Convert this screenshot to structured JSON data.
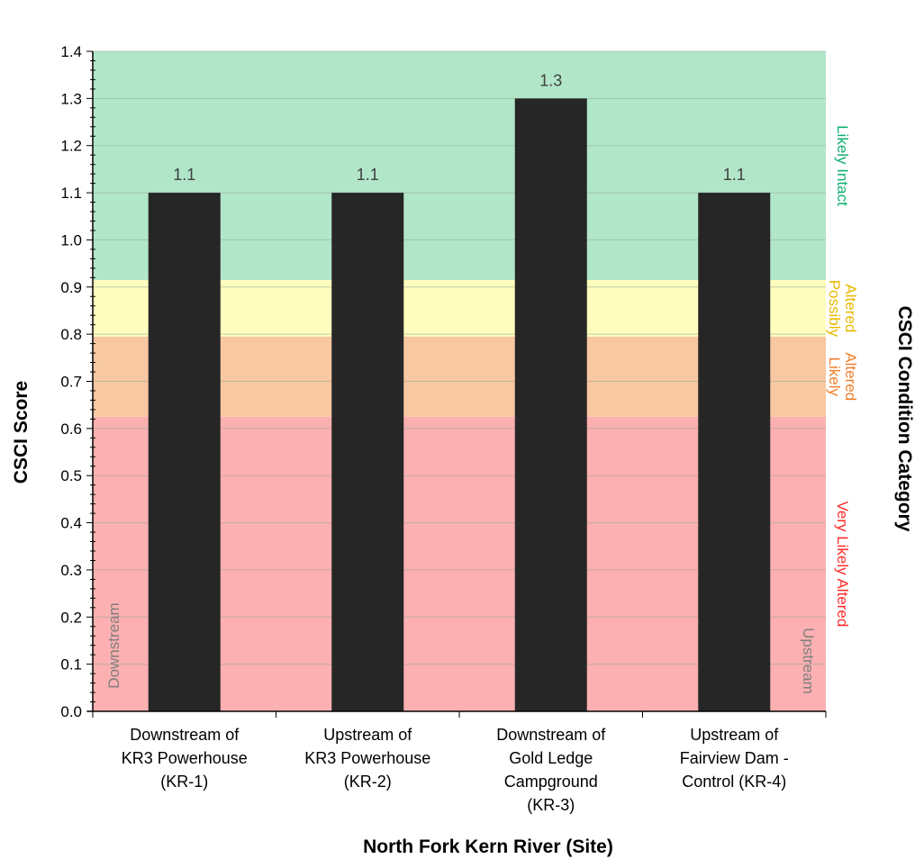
{
  "chart_data": {
    "type": "bar",
    "xlabel": "North Fork Kern River (Site)",
    "ylabel": "CSCI Score",
    "y2label": "CSCI Condition Category",
    "ylim": [
      0,
      1.4
    ],
    "ytick_step": 0.1,
    "categories": [
      [
        "Downstream of",
        "KR3 Powerhouse",
        "(KR-1)"
      ],
      [
        "Upstream of",
        "KR3 Powerhouse",
        "(KR-2)"
      ],
      [
        "Downstream of",
        "Gold Ledge",
        "Campground",
        "(KR-3)"
      ],
      [
        "Upstream of",
        "Fairview Dam -",
        "Control (KR-4)"
      ]
    ],
    "values": [
      1.1,
      1.1,
      1.3,
      1.1
    ],
    "data_labels": [
      "1.1",
      "1.1",
      "1.3",
      "1.1"
    ],
    "bar_color": "#262626",
    "grid": true,
    "bands": [
      {
        "from": 0.0,
        "to": 0.625,
        "color": "#fcb0b1",
        "label": [
          "Very Likely Altered"
        ],
        "label_color": "#ff2a2a"
      },
      {
        "from": 0.625,
        "to": 0.795,
        "color": "#f8c8a2",
        "label": [
          "Likely",
          "Altered"
        ],
        "label_color": "#f07f2a"
      },
      {
        "from": 0.795,
        "to": 0.915,
        "color": "#fefdbd",
        "label": [
          "Possibly",
          "Altered"
        ],
        "label_color": "#e8b800"
      },
      {
        "from": 0.915,
        "to": 1.4,
        "color": "#b2e6c9",
        "label": [
          "Likely Intact"
        ],
        "label_color": "#10b070"
      }
    ],
    "direction_labels": {
      "left": "Downstream",
      "right": "Upstream"
    }
  }
}
